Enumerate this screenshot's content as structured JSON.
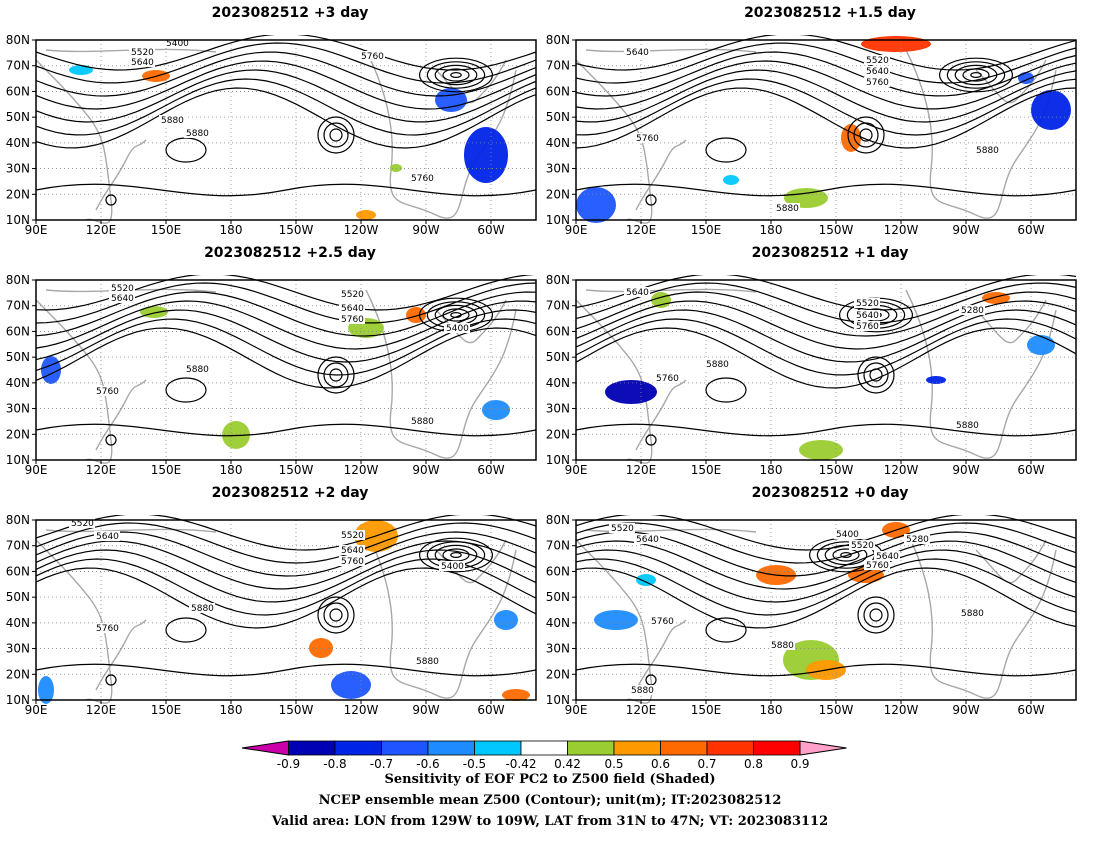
{
  "panels": [
    {
      "title": "2023082512  +3 day",
      "contour_labels": [
        "5400",
        "5520",
        "5640",
        "5760",
        "5880",
        "5880",
        "5760"
      ]
    },
    {
      "title": "2023082512  +1.5 day",
      "contour_labels": [
        "5640",
        "5520",
        "5640",
        "5760",
        "5760",
        "5880",
        "5880"
      ]
    },
    {
      "title": "2023082512  +2.5 day",
      "contour_labels": [
        "5520",
        "5640",
        "5520",
        "5640",
        "5760",
        "5400",
        "5760",
        "5880",
        "5880"
      ]
    },
    {
      "title": "2023082512  +1 day",
      "contour_labels": [
        "5640",
        "5520",
        "5640",
        "5760",
        "5280",
        "5760",
        "5880",
        "5880"
      ]
    },
    {
      "title": "2023082512  +2 day",
      "contour_labels": [
        "5520",
        "5640",
        "5520",
        "5640",
        "5760",
        "5400",
        "5880",
        "5760",
        "5880"
      ]
    },
    {
      "title": "2023082512  +0 day",
      "contour_labels": [
        "5520",
        "5640",
        "5400",
        "5520",
        "5640",
        "5280",
        "5760",
        "5880",
        "5760",
        "5880",
        "5880"
      ]
    }
  ],
  "map": {
    "lat_labels": [
      "80N",
      "70N",
      "60N",
      "50N",
      "40N",
      "30N",
      "20N",
      "10N"
    ],
    "lon_labels": [
      "90E",
      "120E",
      "150E",
      "180",
      "150W",
      "120W",
      "90W",
      "60W"
    ]
  },
  "colorbar": {
    "ticks": [
      "-0.9",
      "-0.8",
      "-0.7",
      "-0.6",
      "-0.5",
      "-0.42",
      "0.42",
      "0.5",
      "0.6",
      "0.7",
      "0.8",
      "0.9"
    ],
    "colors": [
      "#cc00aa",
      "#0000b4",
      "#0024e6",
      "#1e55ff",
      "#1e8cff",
      "#00c8ff",
      "#ffffff",
      "#9acd32",
      "#ff9900",
      "#ff6a00",
      "#ff3300",
      "#ff0000",
      "#ffa0c8"
    ]
  },
  "caption": {
    "line1": "Sensitivity of EOF PC2 to Z500 field (Shaded)",
    "line2": "NCEP ensemble mean Z500 (Contour); unit(m); IT:2023082512",
    "line3": "Valid area: LON from 129W to 109W, LAT from 31N to 47N; VT: 2023083112"
  }
}
